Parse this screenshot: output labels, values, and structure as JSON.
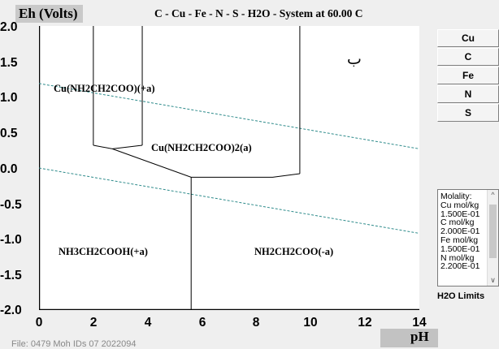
{
  "header": {
    "axis_title": "Eh (Volts)",
    "system_title": "C - Cu - Fe - N - S - H2O - System at 60.00 C"
  },
  "x_axis": {
    "label": "pH",
    "ticks": [
      "0",
      "2",
      "4",
      "6",
      "8",
      "10",
      "12",
      "14"
    ]
  },
  "y_axis": {
    "ticks": [
      "2.0",
      "1.5",
      "1.0",
      "0.5",
      "0.0",
      "-0.5",
      "-1.0",
      "-1.5",
      "-2.0"
    ]
  },
  "regions": [
    "Cu(NH2CH2COO)(+a)",
    "Cu(NH2CH2COO)2(a)",
    "NH3CH2COOH(+a)",
    "NH2CH2COO(-a)"
  ],
  "annotation": "ب",
  "element_buttons": [
    "Cu",
    "C",
    "Fe",
    "N",
    "S"
  ],
  "molality": {
    "lines": [
      "Molality:",
      "Cu mol/kg",
      "1.500E-01",
      "C mol/kg",
      "2.000E-01",
      "Fe mol/kg",
      "1.500E-01",
      "N mol/kg",
      "2.200E-01"
    ]
  },
  "h2o_limits_label": "H2O Limits",
  "footer": "File: 0479 Moh IDs 07 2022094",
  "colors": {
    "plot_background": "#ffffff",
    "water_limit_line": "#2e8b8b",
    "boundary_line": "#000000",
    "panel_background": "#efefef"
  },
  "chart_data": {
    "type": "line",
    "xlim": [
      0,
      14
    ],
    "ylim": [
      -2.0,
      2.0
    ],
    "boundaries": [
      {
        "x": [
          2.0,
          2.0
        ],
        "y": [
          2.0,
          0.32
        ]
      },
      {
        "x": [
          3.8,
          3.8
        ],
        "y": [
          2.0,
          0.32
        ]
      },
      {
        "x": [
          2.0,
          2.7,
          3.8
        ],
        "y": [
          0.32,
          0.27,
          0.32
        ]
      },
      {
        "x": [
          2.7,
          5.6,
          8.6,
          9.6
        ],
        "y": [
          0.27,
          -0.13,
          -0.13,
          -0.08
        ]
      },
      {
        "x": [
          9.6,
          9.6
        ],
        "y": [
          -0.08,
          2.0
        ]
      },
      {
        "x": [
          5.6,
          5.6
        ],
        "y": [
          -0.13,
          -2.0
        ]
      }
    ],
    "water_limits": [
      {
        "name": "upper",
        "x": [
          0,
          14
        ],
        "y": [
          1.19,
          0.27
        ]
      },
      {
        "name": "lower",
        "x": [
          0,
          14
        ],
        "y": [
          0.0,
          -0.92
        ]
      }
    ]
  }
}
